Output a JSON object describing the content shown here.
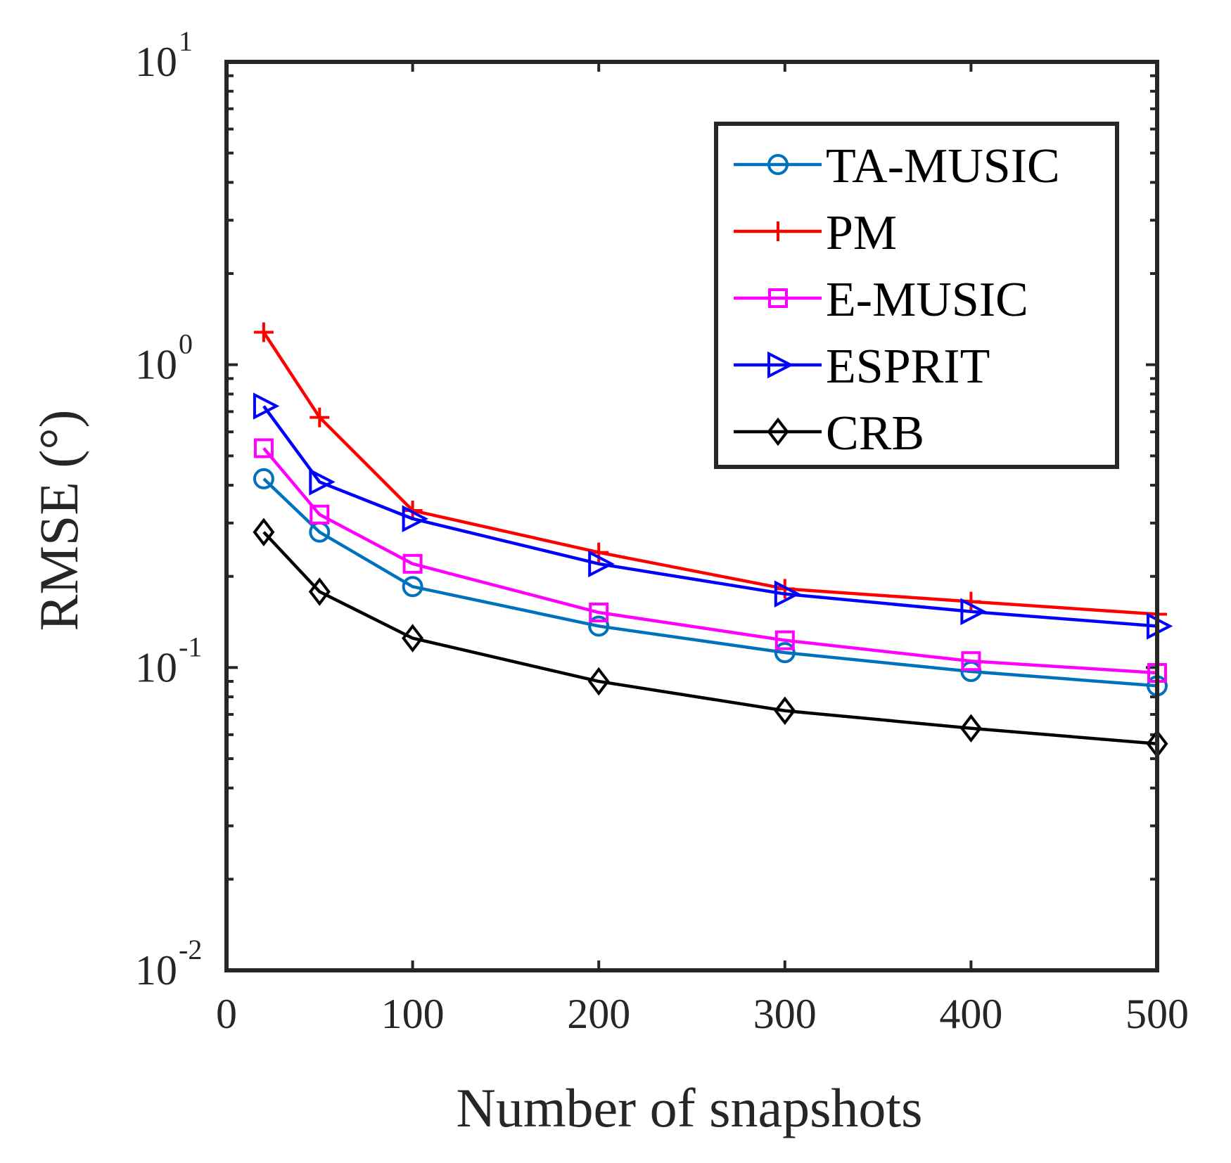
{
  "chart_data": {
    "type": "line",
    "title": "",
    "xlabel": "Number of snapshots",
    "ylabel": "RMSE (°)",
    "xlim": [
      0,
      500
    ],
    "ylim": [
      0.01,
      10
    ],
    "yscale": "log",
    "grid": false,
    "legend_position": "top-right",
    "x_ticks": [
      "0",
      "100",
      "200",
      "300",
      "400",
      "500"
    ],
    "y_ticks": [
      {
        "base": "10",
        "exp": "-2",
        "value": 0.01
      },
      {
        "base": "10",
        "exp": "-1",
        "value": 0.1
      },
      {
        "base": "10",
        "exp": "0",
        "value": 1
      },
      {
        "base": "10",
        "exp": "1",
        "value": 10
      }
    ],
    "x": [
      20,
      50,
      100,
      200,
      300,
      400,
      500
    ],
    "series": [
      {
        "name": "TA-MUSIC",
        "color": "#0072BD",
        "marker": "circle",
        "values": [
          0.42,
          0.28,
          0.185,
          0.137,
          0.112,
          0.097,
          0.087
        ]
      },
      {
        "name": "PM",
        "color": "#FF0000",
        "marker": "plus",
        "values": [
          1.28,
          0.67,
          0.33,
          0.24,
          0.182,
          0.165,
          0.15
        ]
      },
      {
        "name": "E-MUSIC",
        "color": "#FF00FF",
        "marker": "square",
        "values": [
          0.53,
          0.32,
          0.22,
          0.152,
          0.123,
          0.105,
          0.096
        ]
      },
      {
        "name": "ESPRIT",
        "color": "#0000FF",
        "marker": "triangle-right",
        "values": [
          0.73,
          0.41,
          0.31,
          0.22,
          0.175,
          0.153,
          0.137
        ]
      },
      {
        "name": "CRB",
        "color": "#000000",
        "marker": "diamond",
        "values": [
          0.28,
          0.178,
          0.125,
          0.09,
          0.072,
          0.063,
          0.056
        ]
      }
    ]
  }
}
